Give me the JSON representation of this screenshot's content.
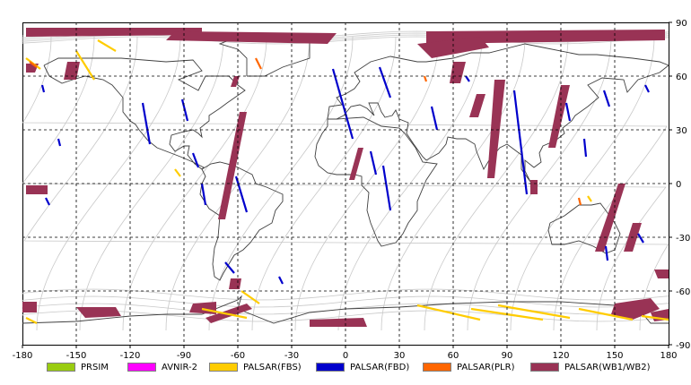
{
  "chart_data": {
    "type": "map",
    "x_ticks": [
      "-180",
      "-150",
      "-120",
      "-90",
      "-60",
      "-30",
      "0",
      "30",
      "60",
      "90",
      "120",
      "150",
      "180"
    ],
    "y_ticks": [
      "90",
      "60",
      "30",
      "0",
      "-30",
      "-60",
      "-90"
    ],
    "xlim": [
      -180,
      180
    ],
    "ylim": [
      -90,
      90
    ],
    "grid": true,
    "legend": [
      {
        "label": "PRSIM",
        "color": "#99cc11"
      },
      {
        "label": "AVNIR-2",
        "color": "#ff00ff"
      },
      {
        "label": "PALSAR(FBS)",
        "color": "#ffcc00"
      },
      {
        "label": "PALSAR(FBD)",
        "color": "#0000cc"
      },
      {
        "label": "PALSAR(PLR)",
        "color": "#ff6600"
      },
      {
        "label": "PALSAR(WB1/WB2)",
        "color": "#993355"
      }
    ],
    "swaths": [
      {
        "sensor": "PALSAR(WB1/WB2)",
        "points": [
          [
            -178,
            87
          ],
          [
            -80,
            87
          ],
          [
            -80,
            83
          ],
          [
            -178,
            82
          ]
        ]
      },
      {
        "sensor": "PALSAR(WB1/WB2)",
        "points": [
          [
            -95,
            85
          ],
          [
            -5,
            84
          ],
          [
            -10,
            78
          ],
          [
            -100,
            80
          ]
        ]
      },
      {
        "sensor": "PALSAR(WB1/WB2)",
        "points": [
          [
            45,
            85
          ],
          [
            178,
            86
          ],
          [
            178,
            80
          ],
          [
            45,
            78
          ]
        ]
      },
      {
        "sensor": "PALSAR(WB1/WB2)",
        "points": [
          [
            40,
            78
          ],
          [
            75,
            82
          ],
          [
            80,
            76
          ],
          [
            48,
            70
          ]
        ]
      },
      {
        "sensor": "PALSAR(WB1/WB2)",
        "points": [
          [
            -155,
            68
          ],
          [
            -148,
            68
          ],
          [
            -150,
            58
          ],
          [
            -157,
            58
          ]
        ]
      },
      {
        "sensor": "PALSAR(WB1/WB2)",
        "points": [
          [
            -178,
            67
          ],
          [
            -171,
            67
          ],
          [
            -173,
            62
          ],
          [
            -178,
            62
          ]
        ]
      },
      {
        "sensor": "PALSAR(WB1/WB2)",
        "points": [
          [
            -59,
            40
          ],
          [
            -55,
            40
          ],
          [
            -67,
            -20
          ],
          [
            -71,
            -20
          ]
        ]
      },
      {
        "sensor": "PALSAR(WB1/WB2)",
        "points": [
          [
            -62,
            60
          ],
          [
            -59,
            60
          ],
          [
            -61,
            54
          ],
          [
            -64,
            54
          ]
        ]
      },
      {
        "sensor": "PALSAR(WB1/WB2)",
        "points": [
          [
            7,
            20
          ],
          [
            10,
            20
          ],
          [
            5,
            2
          ],
          [
            2,
            2
          ]
        ]
      },
      {
        "sensor": "PALSAR(WB1/WB2)",
        "points": [
          [
            60,
            68
          ],
          [
            67,
            68
          ],
          [
            64,
            56
          ],
          [
            58,
            56
          ]
        ]
      },
      {
        "sensor": "PALSAR(WB1/WB2)",
        "points": [
          [
            73,
            50
          ],
          [
            78,
            50
          ],
          [
            74,
            37
          ],
          [
            69,
            37
          ]
        ]
      },
      {
        "sensor": "PALSAR(WB1/WB2)",
        "points": [
          [
            83,
            58
          ],
          [
            89,
            58
          ],
          [
            83,
            3
          ],
          [
            79,
            3
          ]
        ]
      },
      {
        "sensor": "PALSAR(WB1/WB2)",
        "points": [
          [
            120,
            55
          ],
          [
            125,
            55
          ],
          [
            117,
            20
          ],
          [
            113,
            20
          ]
        ]
      },
      {
        "sensor": "PALSAR(WB1/WB2)",
        "points": [
          [
            103,
            2
          ],
          [
            107,
            2
          ],
          [
            107,
            -6
          ],
          [
            103,
            -6
          ]
        ]
      },
      {
        "sensor": "PALSAR(WB1/WB2)",
        "points": [
          [
            152,
            0
          ],
          [
            156,
            0
          ],
          [
            144,
            -38
          ],
          [
            139,
            -38
          ]
        ]
      },
      {
        "sensor": "PALSAR(WB1/WB2)",
        "points": [
          [
            160,
            -22
          ],
          [
            165,
            -22
          ],
          [
            160,
            -38
          ],
          [
            155,
            -38
          ]
        ]
      },
      {
        "sensor": "PALSAR(WB1/WB2)",
        "points": [
          [
            172,
            -48
          ],
          [
            180,
            -48
          ],
          [
            180,
            -53
          ],
          [
            174,
            -53
          ]
        ]
      },
      {
        "sensor": "PALSAR(WB1/WB2)",
        "points": [
          [
            -178,
            -1
          ],
          [
            -166,
            -1
          ],
          [
            -166,
            -6
          ],
          [
            -178,
            -6
          ]
        ]
      },
      {
        "sensor": "PALSAR(WB1/WB2)",
        "points": [
          [
            -64,
            -53
          ],
          [
            -58,
            -53
          ],
          [
            -59,
            -59
          ],
          [
            -65,
            -59
          ]
        ]
      },
      {
        "sensor": "PALSAR(WB1/WB2)",
        "points": [
          [
            -180,
            -66
          ],
          [
            -172,
            -66
          ],
          [
            -172,
            -72
          ],
          [
            -180,
            -72
          ]
        ]
      },
      {
        "sensor": "PALSAR(WB1/WB2)",
        "points": [
          [
            -150,
            -69
          ],
          [
            -128,
            -69
          ],
          [
            -125,
            -74
          ],
          [
            -145,
            -75
          ]
        ]
      },
      {
        "sensor": "PALSAR(WB1/WB2)",
        "points": [
          [
            -85,
            -67
          ],
          [
            -72,
            -66
          ],
          [
            -72,
            -73
          ],
          [
            -87,
            -72
          ]
        ]
      },
      {
        "sensor": "PALSAR(WB1/WB2)",
        "points": [
          [
            -78,
            -75
          ],
          [
            -55,
            -67
          ],
          [
            -52,
            -70
          ],
          [
            -75,
            -78
          ]
        ]
      },
      {
        "sensor": "PALSAR(WB1/WB2)",
        "points": [
          [
            -20,
            -76
          ],
          [
            10,
            -75
          ],
          [
            12,
            -80
          ],
          [
            -20,
            -80
          ]
        ]
      },
      {
        "sensor": "PALSAR(WB1/WB2)",
        "points": [
          [
            150,
            -67
          ],
          [
            170,
            -64
          ],
          [
            175,
            -70
          ],
          [
            160,
            -76
          ],
          [
            148,
            -73
          ]
        ]
      },
      {
        "sensor": "PALSAR(WB1/WB2)",
        "points": [
          [
            170,
            -72
          ],
          [
            180,
            -70
          ],
          [
            180,
            -76
          ],
          [
            172,
            -77
          ]
        ]
      },
      {
        "sensor": "PALSAR(FBD)",
        "points": [
          [
            -113,
            45
          ],
          [
            -109,
            22
          ]
        ]
      },
      {
        "sensor": "PALSAR(FBD)",
        "points": [
          [
            -91,
            47
          ],
          [
            -88,
            35
          ]
        ]
      },
      {
        "sensor": "PALSAR(FBD)",
        "points": [
          [
            -85,
            17
          ],
          [
            -82,
            9
          ]
        ]
      },
      {
        "sensor": "PALSAR(FBD)",
        "points": [
          [
            -80,
            0
          ],
          [
            -78,
            -12
          ]
        ]
      },
      {
        "sensor": "PALSAR(FBD)",
        "points": [
          [
            -61,
            4
          ],
          [
            -55,
            -16
          ]
        ]
      },
      {
        "sensor": "PALSAR(FBD)",
        "points": [
          [
            -67,
            -44
          ],
          [
            -62,
            -50
          ]
        ]
      },
      {
        "sensor": "PALSAR(FBD)",
        "points": [
          [
            -37,
            -52
          ],
          [
            -35,
            -56
          ]
        ]
      },
      {
        "sensor": "PALSAR(FBD)",
        "points": [
          [
            -167,
            -8
          ],
          [
            -165,
            -12
          ]
        ]
      },
      {
        "sensor": "PALSAR(FBD)",
        "points": [
          [
            -160,
            25
          ],
          [
            -159,
            21
          ]
        ]
      },
      {
        "sensor": "PALSAR(FBD)",
        "points": [
          [
            -169,
            55
          ],
          [
            -168,
            51
          ]
        ]
      },
      {
        "sensor": "PALSAR(FBD)",
        "points": [
          [
            -7,
            64
          ],
          [
            4,
            25
          ]
        ]
      },
      {
        "sensor": "PALSAR(FBD)",
        "points": [
          [
            14,
            18
          ],
          [
            17,
            5
          ]
        ]
      },
      {
        "sensor": "PALSAR(FBD)",
        "points": [
          [
            21,
            10
          ],
          [
            25,
            -15
          ]
        ]
      },
      {
        "sensor": "PALSAR(FBD)",
        "points": [
          [
            19,
            65
          ],
          [
            25,
            48
          ]
        ]
      },
      {
        "sensor": "PALSAR(FBD)",
        "points": [
          [
            48,
            43
          ],
          [
            51,
            30
          ]
        ]
      },
      {
        "sensor": "PALSAR(FBD)",
        "points": [
          [
            67,
            60
          ],
          [
            69,
            57
          ]
        ]
      },
      {
        "sensor": "PALSAR(FBD)",
        "points": [
          [
            94,
            52
          ],
          [
            101,
            -6
          ]
        ]
      },
      {
        "sensor": "PALSAR(FBD)",
        "points": [
          [
            123,
            45
          ],
          [
            125,
            35
          ]
        ]
      },
      {
        "sensor": "PALSAR(FBD)",
        "points": [
          [
            133,
            25
          ],
          [
            134,
            15
          ]
        ]
      },
      {
        "sensor": "PALSAR(FBD)",
        "points": [
          [
            144,
            52
          ],
          [
            147,
            43
          ]
        ]
      },
      {
        "sensor": "PALSAR(FBD)",
        "points": [
          [
            167,
            55
          ],
          [
            169,
            51
          ]
        ]
      },
      {
        "sensor": "PALSAR(FBD)",
        "points": [
          [
            145,
            -35
          ],
          [
            146,
            -43
          ]
        ]
      },
      {
        "sensor": "PALSAR(FBD)",
        "points": [
          [
            163,
            -28
          ],
          [
            166,
            -33
          ]
        ]
      },
      {
        "sensor": "PALSAR(FBS)",
        "points": [
          [
            -138,
            80
          ],
          [
            -128,
            74
          ]
        ]
      },
      {
        "sensor": "PALSAR(FBS)",
        "points": [
          [
            -150,
            74
          ],
          [
            -140,
            58
          ]
        ]
      },
      {
        "sensor": "PALSAR(FBS)",
        "points": [
          [
            -95,
            8
          ],
          [
            -92,
            4
          ]
        ]
      },
      {
        "sensor": "PALSAR(FBS)",
        "points": [
          [
            -58,
            -60
          ],
          [
            -48,
            -67
          ]
        ]
      },
      {
        "sensor": "PALSAR(FBS)",
        "points": [
          [
            -80,
            -70
          ],
          [
            -55,
            -75
          ]
        ]
      },
      {
        "sensor": "PALSAR(FBS)",
        "points": [
          [
            -178,
            -75
          ],
          [
            -172,
            -78
          ]
        ]
      },
      {
        "sensor": "PALSAR(FBS)",
        "points": [
          [
            -170,
            64
          ],
          [
            -178,
            70
          ]
        ]
      },
      {
        "sensor": "PALSAR(FBS)",
        "points": [
          [
            40,
            -68
          ],
          [
            75,
            -76
          ]
        ]
      },
      {
        "sensor": "PALSAR(FBS)",
        "points": [
          [
            70,
            -70
          ],
          [
            110,
            -76
          ]
        ]
      },
      {
        "sensor": "PALSAR(FBS)",
        "points": [
          [
            85,
            -68
          ],
          [
            125,
            -75
          ]
        ]
      },
      {
        "sensor": "PALSAR(FBS)",
        "points": [
          [
            130,
            -70
          ],
          [
            160,
            -76
          ]
        ]
      },
      {
        "sensor": "PALSAR(FBS)",
        "points": [
          [
            165,
            -74
          ],
          [
            180,
            -76
          ]
        ]
      },
      {
        "sensor": "PALSAR(FBS)",
        "points": [
          [
            135,
            -7
          ],
          [
            137,
            -10
          ]
        ]
      },
      {
        "sensor": "PALSAR(PLR)",
        "points": [
          [
            -50,
            70
          ],
          [
            -47,
            64
          ]
        ]
      },
      {
        "sensor": "PALSAR(PLR)",
        "points": [
          [
            -176,
            68
          ],
          [
            -172,
            65
          ]
        ]
      },
      {
        "sensor": "PALSAR(PLR)",
        "points": [
          [
            44,
            60
          ],
          [
            45,
            57
          ]
        ]
      },
      {
        "sensor": "PALSAR(PLR)",
        "points": [
          [
            130,
            -8
          ],
          [
            131,
            -12
          ]
        ]
      }
    ]
  }
}
